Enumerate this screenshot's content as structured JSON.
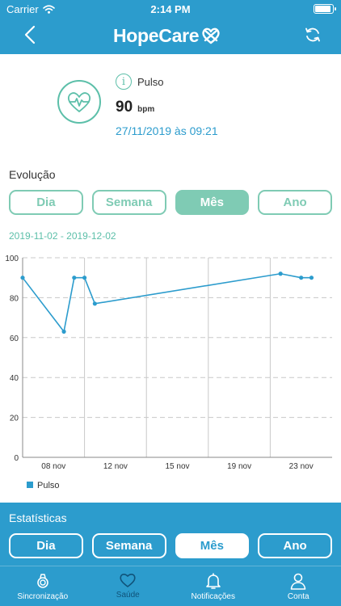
{
  "status_bar": {
    "carrier": "Carrier",
    "time": "2:14 PM"
  },
  "header": {
    "brand": "HopeCare",
    "back_icon": "chevron-left-icon",
    "refresh_icon": "refresh-icon"
  },
  "reading": {
    "label": "Pulso",
    "value": "90",
    "unit": "bpm",
    "datetime": "27/11/2019 às 09:21"
  },
  "evolution": {
    "title": "Evolução",
    "periods": [
      "Dia",
      "Semana",
      "Mês",
      "Ano"
    ],
    "selected": "Mês",
    "range": "2019-11-02 - 2019-12-02"
  },
  "chart_data": {
    "type": "line",
    "x_tick_labels": [
      "08 nov",
      "12 nov",
      "15 nov",
      "19 nov",
      "23 nov"
    ],
    "y_ticks": [
      0,
      20,
      40,
      60,
      80,
      100
    ],
    "ylim": [
      0,
      100
    ],
    "xlim": [
      "2019-11-02",
      "2019-12-02"
    ],
    "series": [
      {
        "name": "Pulso",
        "color": "#2c9ccd",
        "points": [
          {
            "x": "2019-11-02",
            "y": 90
          },
          {
            "x": "2019-11-06",
            "y": 63
          },
          {
            "x": "2019-11-07",
            "y": 90
          },
          {
            "x": "2019-11-08",
            "y": 90
          },
          {
            "x": "2019-11-09",
            "y": 77
          },
          {
            "x": "2019-11-27",
            "y": 92
          },
          {
            "x": "2019-11-29",
            "y": 90
          },
          {
            "x": "2019-11-30",
            "y": 90
          }
        ]
      }
    ],
    "legend": "bottom-left",
    "grid": true
  },
  "stats": {
    "title": "Estatísticas",
    "periods": [
      "Dia",
      "Semana",
      "Mês",
      "Ano"
    ],
    "selected": "Mês"
  },
  "tabbar": [
    {
      "label": "Sincronização",
      "icon": "sync-watch-icon"
    },
    {
      "label": "Saúde",
      "icon": "heart-icon",
      "active": true
    },
    {
      "label": "Notificações",
      "icon": "bell-icon"
    },
    {
      "label": "Conta",
      "icon": "user-icon"
    }
  ],
  "colors": {
    "primary": "#2c9ccd",
    "accent": "#5cbfa9",
    "accent_light": "#7fcbb4",
    "tab_active": "#10537a"
  }
}
